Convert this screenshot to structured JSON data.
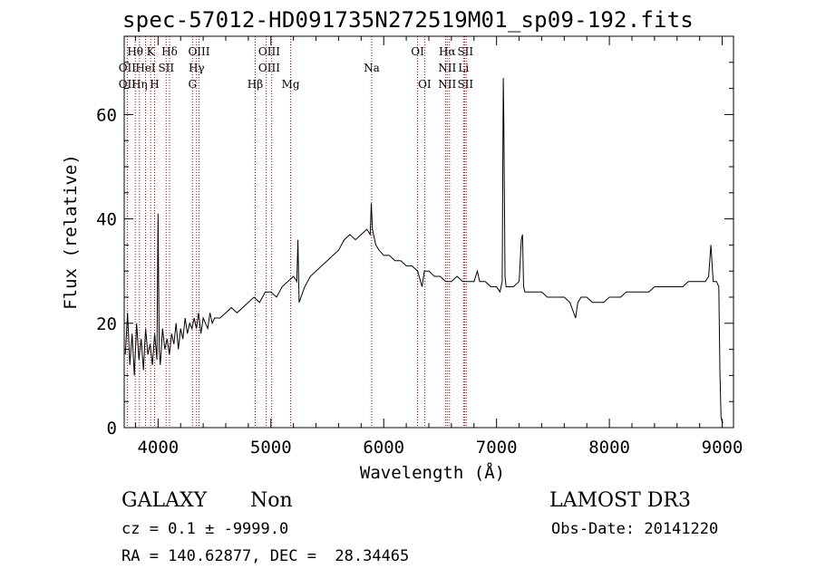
{
  "chart_data": {
    "type": "line",
    "title": "spec-57012-HD091735N272519M01_sp09-192.fits",
    "xlabel": "Wavelength (Å)",
    "ylabel": "Flux (relative)",
    "xlim": [
      3700,
      9100
    ],
    "ylim": [
      0,
      75
    ],
    "xticks": [
      4000,
      5000,
      6000,
      7000,
      8000,
      9000
    ],
    "yticks": [
      0,
      20,
      40,
      60
    ],
    "grid": false,
    "series": [
      {
        "color": "#000000",
        "x": [
          3710,
          3730,
          3750,
          3770,
          3790,
          3810,
          3830,
          3850,
          3870,
          3890,
          3910,
          3930,
          3950,
          3970,
          3990,
          4000,
          4010,
          4020,
          4040,
          4060,
          4080,
          4100,
          4120,
          4140,
          4160,
          4180,
          4200,
          4220,
          4240,
          4260,
          4280,
          4300,
          4320,
          4340,
          4360,
          4380,
          4400,
          4420,
          4440,
          4460,
          4480,
          4500,
          4550,
          4600,
          4650,
          4700,
          4750,
          4800,
          4850,
          4900,
          4950,
          5000,
          5050,
          5100,
          5150,
          5200,
          5230,
          5240,
          5250,
          5300,
          5350,
          5400,
          5450,
          5500,
          5550,
          5600,
          5650,
          5700,
          5750,
          5800,
          5850,
          5880,
          5890,
          5900,
          5930,
          5960,
          6000,
          6050,
          6100,
          6150,
          6200,
          6250,
          6300,
          6340,
          6360,
          6400,
          6450,
          6500,
          6550,
          6600,
          6650,
          6700,
          6750,
          6800,
          6830,
          6850,
          6900,
          6950,
          7000,
          7030,
          7050,
          7055,
          7060,
          7064,
          7068,
          7075,
          7085,
          7100,
          7150,
          7200,
          7220,
          7230,
          7240,
          7250,
          7260,
          7300,
          7350,
          7400,
          7450,
          7500,
          7550,
          7600,
          7650,
          7700,
          7720,
          7750,
          7800,
          7850,
          7900,
          7950,
          8000,
          8050,
          8100,
          8150,
          8200,
          8250,
          8300,
          8350,
          8400,
          8450,
          8500,
          8550,
          8600,
          8650,
          8700,
          8750,
          8800,
          8850,
          8880,
          8900,
          8920,
          8950,
          8970,
          8980,
          8990,
          9000,
          9010
        ],
        "y": [
          14,
          22,
          12,
          18,
          10,
          20,
          13,
          17,
          11,
          19,
          14,
          16,
          12,
          18,
          13,
          41,
          15,
          12,
          19,
          15,
          17,
          14,
          18,
          16,
          20,
          15,
          19,
          17,
          21,
          18,
          20,
          19,
          21,
          19,
          22,
          18,
          21,
          20,
          19,
          22,
          20,
          21,
          21,
          22,
          23,
          22,
          23,
          24,
          25,
          24,
          26,
          26,
          25,
          27,
          28,
          29,
          28,
          36,
          24,
          27,
          29,
          30,
          31,
          32,
          33,
          34,
          36,
          37,
          36,
          37,
          38,
          37,
          43,
          38,
          35,
          34,
          33,
          33,
          32,
          32,
          31,
          31,
          30,
          27,
          30,
          30,
          29,
          29,
          28,
          28,
          29,
          28,
          28,
          28,
          30,
          28,
          28,
          27,
          27,
          26,
          28,
          48,
          67,
          60,
          50,
          29,
          27,
          27,
          27,
          28,
          36,
          37,
          27,
          26,
          26,
          26,
          26,
          26,
          25,
          25,
          25,
          25,
          24,
          21,
          24,
          25,
          25,
          24,
          24,
          24,
          25,
          25,
          25,
          26,
          26,
          26,
          26,
          26,
          27,
          27,
          27,
          27,
          27,
          27,
          28,
          28,
          28,
          28,
          29,
          35,
          28,
          28,
          27,
          10,
          2,
          1,
          1
        ]
      }
    ],
    "line_labels": [
      {
        "text": "OII",
        "x": 3727,
        "row": 2
      },
      {
        "text": "OII",
        "x": 3727,
        "row": 3
      },
      {
        "text": "Hθ",
        "x": 3798,
        "row": 1
      },
      {
        "text": "Hη",
        "x": 3835,
        "row": 3
      },
      {
        "text": "HeI",
        "x": 3889,
        "row": 2
      },
      {
        "text": "K",
        "x": 3934,
        "row": 1
      },
      {
        "text": "H",
        "x": 3969,
        "row": 3
      },
      {
        "text": "Hδ",
        "x": 4102,
        "row": 1
      },
      {
        "text": "SII",
        "x": 4072,
        "row": 2
      },
      {
        "text": "G",
        "x": 4305,
        "row": 3
      },
      {
        "text": "OIII",
        "x": 4363,
        "row": 1
      },
      {
        "text": "Hγ",
        "x": 4341,
        "row": 2
      },
      {
        "text": "Hβ",
        "x": 4861,
        "row": 3
      },
      {
        "text": "OIII",
        "x": 4985,
        "row": 1
      },
      {
        "text": "OIII",
        "x": 4985,
        "row": 2
      },
      {
        "text": "Mg",
        "x": 5175,
        "row": 3
      },
      {
        "text": "Na",
        "x": 5893,
        "row": 2
      },
      {
        "text": "OI",
        "x": 6300,
        "row": 1
      },
      {
        "text": "OI",
        "x": 6363,
        "row": 3
      },
      {
        "text": "Hα",
        "x": 6563,
        "row": 1
      },
      {
        "text": "NII",
        "x": 6563,
        "row": 2
      },
      {
        "text": "NII",
        "x": 6563,
        "row": 3
      },
      {
        "text": "SII",
        "x": 6724,
        "row": 1
      },
      {
        "text": "Li",
        "x": 6708,
        "row": 2
      },
      {
        "text": "SII",
        "x": 6724,
        "row": 3
      }
    ],
    "line_positions": [
      3727,
      3798,
      3835,
      3889,
      3934,
      3969,
      4072,
      4102,
      4305,
      4341,
      4363,
      4861,
      4959,
      5007,
      5175,
      5893,
      6300,
      6363,
      6548,
      6563,
      6583,
      6708,
      6717,
      6731
    ]
  },
  "info": {
    "class_label": "GALAXY",
    "subclass_label": "Non",
    "survey_label": "LAMOST DR3",
    "cz_line": "cz = 0.1 ± -9999.0",
    "obsdate_line": "Obs-Date: 20141220",
    "radec_line": "RA = 140.62877, DEC =  28.34465"
  }
}
